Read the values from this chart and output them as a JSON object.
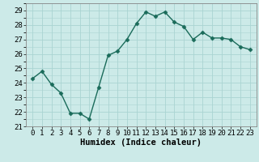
{
  "xlabel": "Humidex (Indice chaleur)",
  "x": [
    0,
    1,
    2,
    3,
    4,
    5,
    6,
    7,
    8,
    9,
    10,
    11,
    12,
    13,
    14,
    15,
    16,
    17,
    18,
    19,
    20,
    21,
    22,
    23
  ],
  "y": [
    24.3,
    24.8,
    23.9,
    23.3,
    21.9,
    21.9,
    21.5,
    23.7,
    25.9,
    26.2,
    27.0,
    28.1,
    28.9,
    28.6,
    28.9,
    28.2,
    27.9,
    27.0,
    27.5,
    27.1,
    27.1,
    27.0,
    26.5,
    26.3
  ],
  "ylim": [
    21,
    29.5
  ],
  "yticks": [
    21,
    22,
    23,
    24,
    25,
    26,
    27,
    28,
    29
  ],
  "xtick_labels": [
    "0",
    "1",
    "2",
    "3",
    "4",
    "5",
    "6",
    "7",
    "8",
    "9",
    "10",
    "11",
    "12",
    "13",
    "14",
    "15",
    "16",
    "17",
    "18",
    "19",
    "20",
    "21",
    "22",
    "23"
  ],
  "line_color": "#1a6b5a",
  "marker": "D",
  "marker_size": 2.5,
  "bg_color": "#cceae8",
  "grid_color": "#aad4d2",
  "xlabel_fontsize": 7.5,
  "tick_fontsize": 6.5,
  "line_width": 1.0
}
